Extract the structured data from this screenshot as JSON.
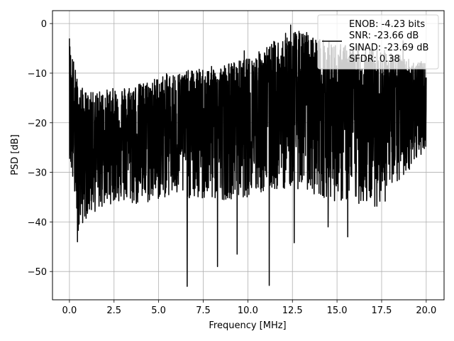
{
  "chart_data": {
    "type": "line",
    "xlabel": "Frequency [MHz]",
    "ylabel": "PSD [dB]",
    "xlim": [
      -0.95,
      21.0
    ],
    "ylim": [
      -55.7,
      2.6
    ],
    "xticks": [
      0.0,
      2.5,
      5.0,
      7.5,
      10.0,
      12.5,
      15.0,
      17.5,
      20.0
    ],
    "xtick_labels": [
      "0.0",
      "2.5",
      "5.0",
      "7.5",
      "10.0",
      "12.5",
      "15.0",
      "17.5",
      "20.0"
    ],
    "yticks": [
      0,
      -10,
      -20,
      -30,
      -40,
      -50
    ],
    "ytick_labels": [
      "0",
      "−10",
      "−20",
      "−30",
      "−40",
      "−50"
    ],
    "grid": true,
    "legend_position": "top-right",
    "series": [
      {
        "name": "ENOB: -4.23 bits\nSNR: -23.66 dB\nSINAD: -23.69 dB\nSFDR: 0.38",
        "legend_lines": [
          "ENOB: -4.23 bits",
          "SNR: -23.66 dB",
          "SINAD: -23.69 dB",
          "SFDR: 0.38"
        ],
        "color": "#000000",
        "x_range": [
          0.0,
          20.0
        ],
        "noise": {
          "description": "dense noise-like PSD trace",
          "envelope": [
            {
              "x": 0.0,
              "upper": -3,
              "lower": -27,
              "mid": -18
            },
            {
              "x": 0.5,
              "upper": -12,
              "lower": -42,
              "mid": -24
            },
            {
              "x": 1.0,
              "upper": -14,
              "lower": -39,
              "mid": -23
            },
            {
              "x": 2.5,
              "upper": -13,
              "lower": -36,
              "mid": -22
            },
            {
              "x": 4.0,
              "upper": -12,
              "lower": -37,
              "mid": -21
            },
            {
              "x": 5.5,
              "upper": -10,
              "lower": -35,
              "mid": -20
            },
            {
              "x": 7.5,
              "upper": -9,
              "lower": -36,
              "mid": -19
            },
            {
              "x": 10.0,
              "upper": -7,
              "lower": -35,
              "mid": -18
            },
            {
              "x": 12.5,
              "upper": -1,
              "lower": -33,
              "mid": -16
            },
            {
              "x": 15.0,
              "upper": -4,
              "lower": -36,
              "mid": -17
            },
            {
              "x": 17.5,
              "upper": -5,
              "lower": -37,
              "mid": -17
            },
            {
              "x": 20.0,
              "upper": -8,
              "lower": -25,
              "mid": -16
            }
          ],
          "deep_dips": [
            {
              "x": 0.45,
              "y": -44
            },
            {
              "x": 6.6,
              "y": -53
            },
            {
              "x": 8.3,
              "y": -49
            },
            {
              "x": 9.4,
              "y": -46.5
            },
            {
              "x": 11.2,
              "y": -52.8
            },
            {
              "x": 12.6,
              "y": -44.2
            },
            {
              "x": 14.5,
              "y": -41
            },
            {
              "x": 15.6,
              "y": -43
            }
          ],
          "peaks": [
            {
              "x": 0.0,
              "y": -3
            },
            {
              "x": 12.4,
              "y": -0.3
            },
            {
              "x": 13.3,
              "y": -1.8
            },
            {
              "x": 18.7,
              "y": -3.5
            },
            {
              "x": 16.6,
              "y": -4.5
            },
            {
              "x": 9.8,
              "y": -5.5
            },
            {
              "x": 11.0,
              "y": -6.5
            }
          ]
        }
      }
    ]
  }
}
